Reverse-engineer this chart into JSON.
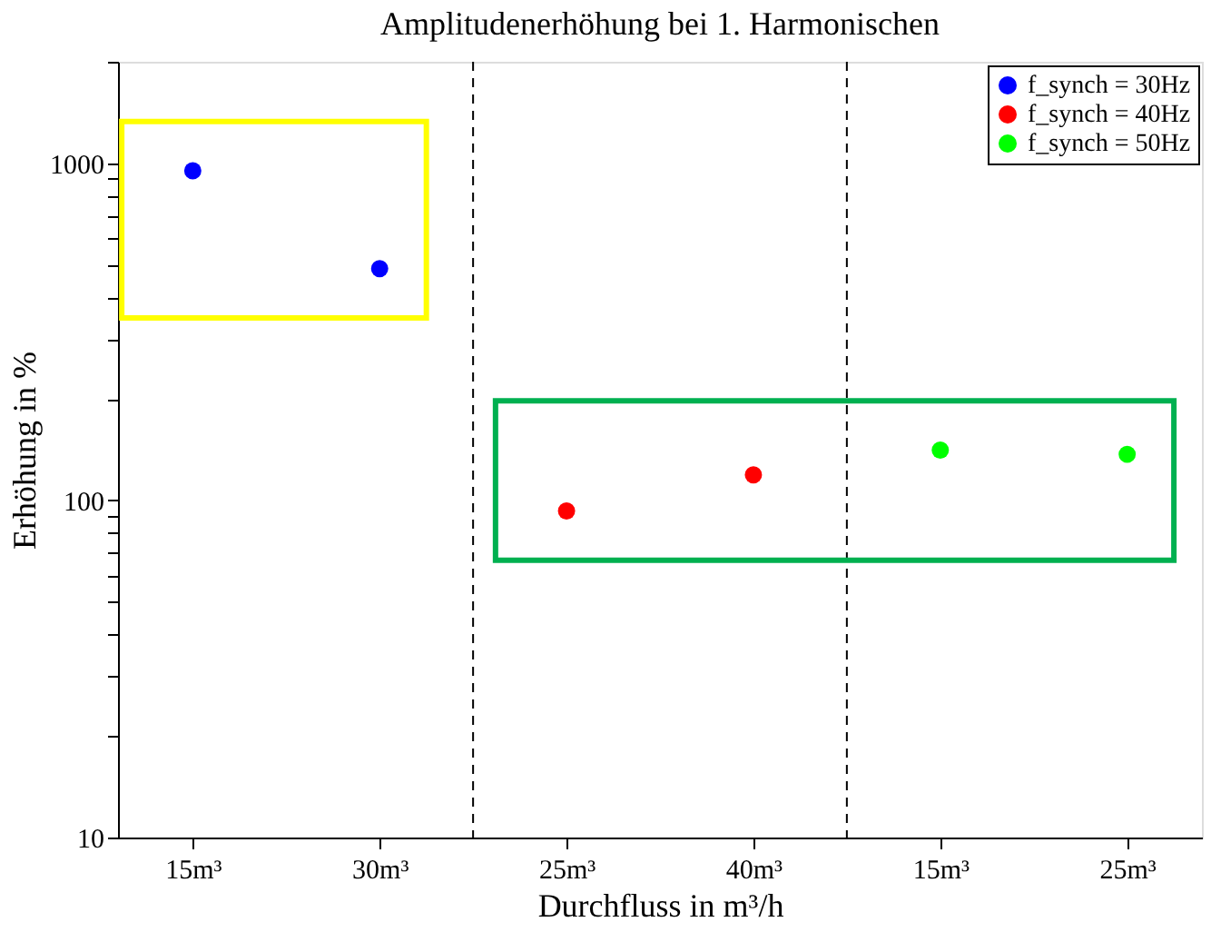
{
  "chart_data": {
    "type": "scatter",
    "title": "Amplitudenerhöhung bei 1. Harmonischen",
    "xlabel": "Durchfluss in m³/h",
    "ylabel": "Erhöhung in %",
    "categories": [
      "15m³",
      "30m³",
      "25m³",
      "40m³",
      "15m³",
      "25m³"
    ],
    "series": [
      {
        "name": "f_synch = 30Hz",
        "color": "#0000ff",
        "values": [
          950,
          487,
          null,
          null,
          null,
          null
        ]
      },
      {
        "name": "f_synch = 40Hz",
        "color": "#ff0000",
        "values": [
          null,
          null,
          93,
          119,
          null,
          null
        ]
      },
      {
        "name": "f_synch = 50Hz",
        "color": "#00ff00",
        "values": [
          null,
          null,
          null,
          null,
          141,
          137
        ]
      }
    ],
    "ylim": [
      10,
      2000
    ],
    "log": true,
    "yticks": [
      10,
      {
        "value": 20,
        "label": null
      },
      {
        "value": 30,
        "label": null
      },
      {
        "value": 40,
        "label": null
      },
      {
        "value": 50,
        "label": null
      },
      {
        "value": 60,
        "label": null
      },
      {
        "value": 70,
        "label": null
      },
      {
        "value": 80,
        "label": null
      },
      {
        "value": 90,
        "label": null
      },
      100,
      {
        "value": 200,
        "label": null
      },
      {
        "value": 300,
        "label": null
      },
      {
        "value": 400,
        "label": null
      },
      {
        "value": 500,
        "label": null
      },
      {
        "value": 600,
        "label": null
      },
      {
        "value": 700,
        "label": null
      },
      {
        "value": 800,
        "label": null
      },
      {
        "value": 900,
        "label": null
      },
      1000,
      {
        "value": 2000,
        "label": null
      }
    ],
    "grid": false,
    "legend": "top right",
    "marker": "circle"
  }
}
